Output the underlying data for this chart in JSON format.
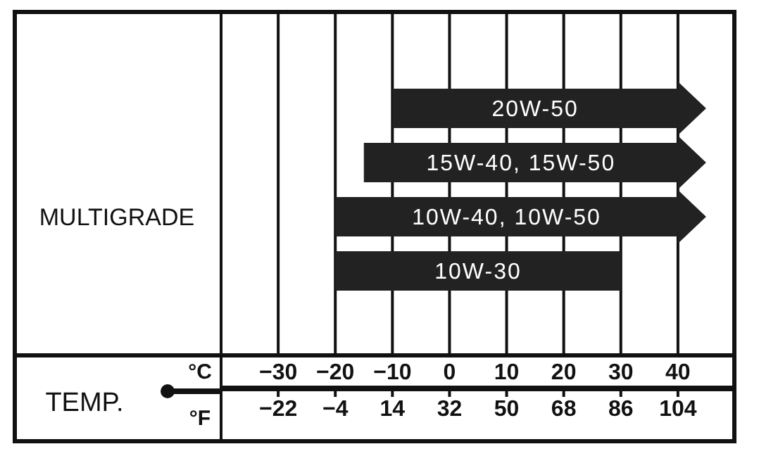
{
  "chart_data": {
    "type": "bar",
    "orientation": "horizontal",
    "ylabel": "MULTIGRADE",
    "xlabel": "°C",
    "x2label": "°F",
    "annotations": [
      "TEMP."
    ],
    "categories": [
      "20W-50",
      "15W-40, 15W-50",
      "10W-40, 10W-50",
      "10W-30"
    ],
    "base": [
      -10,
      -15,
      -20,
      -20
    ],
    "values": [
      50,
      55,
      60,
      50
    ],
    "color": "#222222",
    "xlim": [
      -40,
      50
    ],
    "xticks": [
      -30,
      -20,
      -10,
      0,
      10,
      20,
      30,
      40
    ],
    "x2lim": [
      -40,
      122
    ],
    "x2ticks": [
      -22,
      -4,
      14,
      32,
      50,
      68,
      86,
      104
    ],
    "grid": "x",
    "legend": false
  }
}
